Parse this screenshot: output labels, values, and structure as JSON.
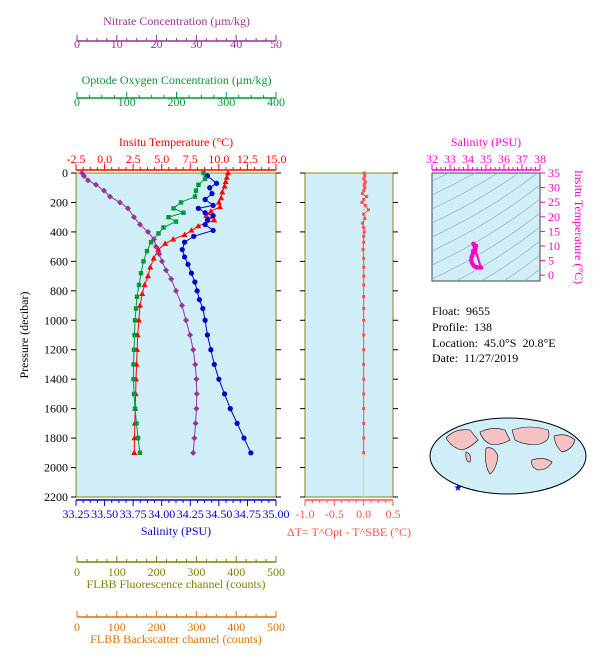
{
  "info": {
    "float": "Float:  9655",
    "profile": "Profile:  138",
    "location": "Location:  45.0°S  20.8°E",
    "date": "Date:  11/27/2019"
  },
  "colors": {
    "temperature": "#ff0000",
    "salinity": "#0000cc",
    "oxygen": "#009933",
    "nitrate": "#993399",
    "fluorescence": "#808000",
    "backscatter": "#e07000",
    "ts_magenta": "#ff00cc",
    "dt": "#ff5050",
    "panel_bg": "#cfeef8"
  },
  "chart_data": [
    {
      "type": "line",
      "panel": "main-profile",
      "ylabel": "Pressure (decibar)",
      "ylim": [
        2200,
        0
      ],
      "yticks": [
        0,
        200,
        400,
        600,
        800,
        1000,
        1200,
        1400,
        1600,
        1800,
        2000,
        2200
      ],
      "axes": {
        "nitrate": {
          "label": "Nitrate Concentration (µm/kg)",
          "lim": [
            0,
            50
          ],
          "ticks": [
            0,
            10,
            20,
            30,
            40,
            50
          ]
        },
        "oxygen": {
          "label": "Optode Oxygen Concentration (µm/kg)",
          "lim": [
            0,
            400
          ],
          "ticks": [
            0,
            100,
            200,
            300,
            400
          ]
        },
        "temperature": {
          "label": "Insitu Temperature (°C)",
          "lim": [
            -2.5,
            15.0
          ],
          "ticks": [
            "-2.5",
            "0.0",
            "2.5",
            "5.0",
            "7.5",
            "10.0",
            "12.5",
            "15.0"
          ]
        },
        "salinity": {
          "label": "Salinity (PSU)",
          "lim": [
            33.25,
            35.0
          ],
          "ticks": [
            "33.25",
            "33.50",
            "33.75",
            "34.00",
            "34.25",
            "34.50",
            "34.75",
            "35.00"
          ]
        },
        "fluorescence": {
          "label": "FLBB Fluorescence channel (counts)",
          "lim": [
            0,
            500
          ],
          "ticks": [
            0,
            100,
            200,
            300,
            400,
            500
          ]
        },
        "backscatter": {
          "label": "FLBB Backscatter channel (counts)",
          "lim": [
            0,
            500
          ],
          "ticks": [
            0,
            100,
            200,
            300,
            400,
            500
          ]
        }
      },
      "series": [
        {
          "name": "temperature",
          "marker": "triangle",
          "points": [
            [
              10.8,
              0
            ],
            [
              10.7,
              30
            ],
            [
              10.6,
              60
            ],
            [
              10.5,
              90
            ],
            [
              10.3,
              130
            ],
            [
              10.2,
              170
            ],
            [
              10.0,
              200
            ],
            [
              10.1,
              230
            ],
            [
              9.3,
              260
            ],
            [
              8.9,
              290
            ],
            [
              9.6,
              320
            ],
            [
              8.2,
              360
            ],
            [
              7.6,
              390
            ],
            [
              7.0,
              420
            ],
            [
              6.0,
              450
            ],
            [
              5.3,
              480
            ],
            [
              4.7,
              520
            ],
            [
              4.3,
              580
            ],
            [
              4.0,
              640
            ],
            [
              3.8,
              700
            ],
            [
              3.5,
              760
            ],
            [
              3.3,
              820
            ],
            [
              3.1,
              900
            ],
            [
              3.0,
              1000
            ],
            [
              2.9,
              1100
            ],
            [
              2.85,
              1200
            ],
            [
              2.8,
              1300
            ],
            [
              2.75,
              1400
            ],
            [
              2.72,
              1500
            ],
            [
              2.68,
              1600
            ],
            [
              2.65,
              1700
            ],
            [
              2.62,
              1800
            ],
            [
              2.6,
              1900
            ]
          ]
        },
        {
          "name": "salinity",
          "marker": "circle",
          "points": [
            [
              34.4,
              20
            ],
            [
              34.48,
              70
            ],
            [
              34.42,
              100
            ],
            [
              34.44,
              140
            ],
            [
              34.38,
              180
            ],
            [
              34.45,
              220
            ],
            [
              34.32,
              240
            ],
            [
              34.38,
              270
            ],
            [
              34.45,
              290
            ],
            [
              34.4,
              320
            ],
            [
              34.38,
              350
            ],
            [
              34.45,
              390
            ],
            [
              34.28,
              430
            ],
            [
              34.2,
              470
            ],
            [
              34.18,
              520
            ],
            [
              34.2,
              570
            ],
            [
              34.23,
              620
            ],
            [
              34.26,
              680
            ],
            [
              34.29,
              740
            ],
            [
              34.31,
              800
            ],
            [
              34.33,
              860
            ],
            [
              34.36,
              920
            ],
            [
              34.38,
              1000
            ],
            [
              34.4,
              1100
            ],
            [
              34.43,
              1200
            ],
            [
              34.46,
              1300
            ],
            [
              34.5,
              1400
            ],
            [
              34.55,
              1500
            ],
            [
              34.6,
              1600
            ],
            [
              34.66,
              1700
            ],
            [
              34.72,
              1800
            ],
            [
              34.78,
              1900
            ]
          ]
        },
        {
          "name": "oxygen",
          "marker": "square",
          "points": [
            [
              255,
              0
            ],
            [
              258,
              40
            ],
            [
              245,
              80
            ],
            [
              240,
              120
            ],
            [
              238,
              160
            ],
            [
              210,
              200
            ],
            [
              195,
              240
            ],
            [
              215,
              270
            ],
            [
              185,
              300
            ],
            [
              200,
              330
            ],
            [
              175,
              370
            ],
            [
              165,
              410
            ],
            [
              150,
              470
            ],
            [
              142,
              530
            ],
            [
              135,
              600
            ],
            [
              130,
              680
            ],
            [
              126,
              760
            ],
            [
              122,
              840
            ],
            [
              120,
              920
            ],
            [
              118,
              1000
            ],
            [
              117,
              1100
            ],
            [
              116,
              1200
            ],
            [
              115,
              1300
            ],
            [
              115,
              1400
            ],
            [
              116,
              1500
            ],
            [
              118,
              1600
            ],
            [
              121,
              1700
            ],
            [
              124,
              1800
            ],
            [
              128,
              1900
            ]
          ]
        },
        {
          "name": "nitrate",
          "marker": "diamond",
          "points": [
            [
              1.5,
              0
            ],
            [
              2.0,
              20
            ],
            [
              3.0,
              50
            ],
            [
              5.0,
              80
            ],
            [
              7.0,
              120
            ],
            [
              8.5,
              160
            ],
            [
              11.0,
              200
            ],
            [
              13.0,
              240
            ],
            [
              14.5,
              300
            ],
            [
              16.0,
              350
            ],
            [
              18.0,
              400
            ],
            [
              19.5,
              450
            ],
            [
              20.0,
              500
            ],
            [
              20.8,
              550
            ],
            [
              21.5,
              600
            ],
            [
              22.5,
              660
            ],
            [
              23.8,
              720
            ],
            [
              25.0,
              800
            ],
            [
              26.5,
              900
            ],
            [
              27.5,
              1000
            ],
            [
              28.5,
              1100
            ],
            [
              29.3,
              1200
            ],
            [
              29.8,
              1300
            ],
            [
              30.1,
              1400
            ],
            [
              30.2,
              1500
            ],
            [
              30.1,
              1600
            ],
            [
              29.9,
              1700
            ],
            [
              29.6,
              1800
            ],
            [
              29.3,
              1900
            ]
          ]
        }
      ]
    },
    {
      "type": "scatter",
      "panel": "delta-t",
      "xlabel": "ΔT= T^Opt - T^SBE (°C)",
      "xlim": [
        -1.0,
        0.5
      ],
      "xticks": [
        "-1.0",
        "-0.5",
        "0.0",
        "0.5"
      ],
      "ylim": [
        2200,
        0
      ],
      "points": [
        [
          0.01,
          0
        ],
        [
          0.02,
          20
        ],
        [
          0.0,
          40
        ],
        [
          0.03,
          60
        ],
        [
          0.01,
          80
        ],
        [
          0.02,
          100
        ],
        [
          0.0,
          120
        ],
        [
          -0.02,
          140
        ],
        [
          0.05,
          160
        ],
        [
          0.0,
          180
        ],
        [
          -0.03,
          200
        ],
        [
          0.03,
          220
        ],
        [
          0.08,
          250
        ],
        [
          0.0,
          280
        ],
        [
          0.02,
          310
        ],
        [
          -0.02,
          340
        ],
        [
          0.0,
          370
        ],
        [
          0.01,
          400
        ],
        [
          0.0,
          430
        ],
        [
          0.0,
          470
        ],
        [
          -0.01,
          520
        ],
        [
          0.0,
          580
        ],
        [
          0.0,
          640
        ],
        [
          0.0,
          700
        ],
        [
          0.0,
          760
        ],
        [
          0.0,
          840
        ],
        [
          0.0,
          920
        ],
        [
          0.0,
          1000
        ],
        [
          0.0,
          1100
        ],
        [
          0.0,
          1200
        ],
        [
          0.0,
          1300
        ],
        [
          0.0,
          1400
        ],
        [
          0.0,
          1500
        ],
        [
          0.0,
          1600
        ],
        [
          0.0,
          1700
        ],
        [
          0.0,
          1800
        ],
        [
          0.0,
          1900
        ]
      ]
    },
    {
      "type": "scatter",
      "panel": "ts-diagram",
      "title": "Salinity (PSU)",
      "ylabel": "Insitu Temperature (°C)",
      "xlim": [
        32,
        38
      ],
      "ylim": [
        -2,
        35
      ],
      "xticks": [
        32,
        33,
        34,
        35,
        36,
        37,
        38
      ],
      "yticks": [
        0,
        5,
        10,
        15,
        20,
        25,
        30,
        35
      ],
      "points": [
        [
          34.3,
          10.8
        ],
        [
          34.35,
          10.2
        ],
        [
          34.4,
          9.6
        ],
        [
          34.42,
          9.0
        ],
        [
          34.38,
          8.5
        ],
        [
          34.32,
          7.8
        ],
        [
          34.25,
          7.0
        ],
        [
          34.2,
          6.2
        ],
        [
          34.18,
          5.2
        ],
        [
          34.2,
          4.5
        ],
        [
          34.25,
          3.9
        ],
        [
          34.3,
          3.4
        ],
        [
          34.36,
          3.0
        ],
        [
          34.42,
          2.8
        ],
        [
          34.5,
          2.7
        ],
        [
          34.6,
          2.65
        ],
        [
          34.72,
          2.6
        ],
        [
          34.38,
          9.3
        ],
        [
          34.45,
          10.0
        ],
        [
          34.28,
          8.2
        ]
      ]
    }
  ]
}
